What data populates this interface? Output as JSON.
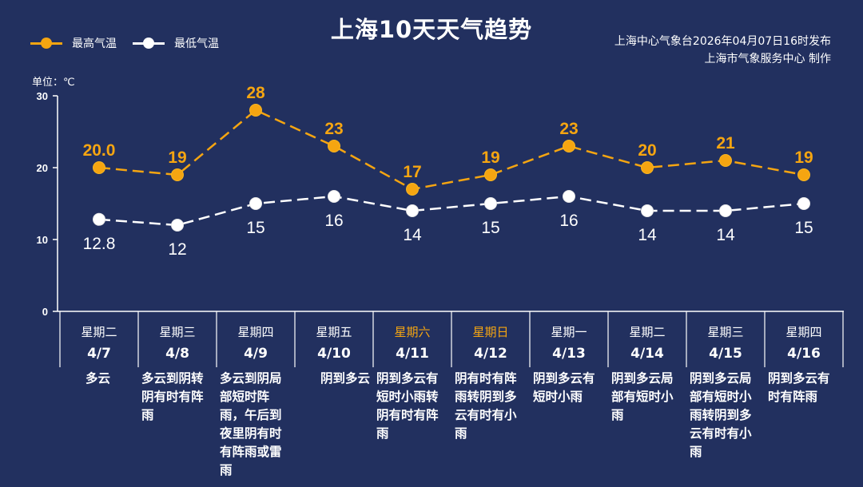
{
  "title": "上海10天天气趋势",
  "issuer": {
    "line1": "上海中心气象台2026年04月07日16时发布",
    "line2": "上海市气象服务中心  制作"
  },
  "legend": {
    "high": "最高气温",
    "low": "最低气温"
  },
  "unit_label": "单位：℃",
  "colors": {
    "background": "#22305f",
    "high": "#f5a511",
    "low": "#ffffff",
    "weekend": "#f5a511"
  },
  "chart_data": {
    "type": "line",
    "title": "上海10天天气趋势",
    "ylabel": "单位：℃",
    "ylim": [
      0,
      30
    ],
    "yticks": [
      "0",
      "10",
      "20",
      "30"
    ],
    "grid": false,
    "legend_position": "top-left",
    "categories": [
      "4/7",
      "4/8",
      "4/9",
      "4/10",
      "4/11",
      "4/12",
      "4/13",
      "4/14",
      "4/15",
      "4/16"
    ],
    "series": [
      {
        "name": "最高气温",
        "values": [
          20.0,
          19,
          28,
          23,
          17,
          19,
          23,
          20,
          21,
          19
        ],
        "labels": [
          "20.0",
          "19",
          "28",
          "23",
          "17",
          "19",
          "23",
          "20",
          "21",
          "19"
        ]
      },
      {
        "name": "最低气温",
        "values": [
          12.8,
          12,
          15,
          16,
          14,
          15,
          16,
          14,
          14,
          15
        ],
        "labels": [
          "12.8",
          "12",
          "15",
          "16",
          "14",
          "15",
          "16",
          "14",
          "14",
          "15"
        ]
      }
    ]
  },
  "days": [
    {
      "weekday": "星期二",
      "date": "4/7",
      "weather": "多云",
      "weekend": false
    },
    {
      "weekday": "星期三",
      "date": "4/8",
      "weather": "多云到阴转阴有时有阵雨",
      "weekend": false
    },
    {
      "weekday": "星期四",
      "date": "4/9",
      "weather": "多云到阴局部短时阵雨，午后到夜里阴有时有阵雨或雷雨",
      "weekend": false
    },
    {
      "weekday": "星期五",
      "date": "4/10",
      "weather": "阴到多云",
      "weekend": false
    },
    {
      "weekday": "星期六",
      "date": "4/11",
      "weather": "阴到多云有短时小雨转阴有时有阵雨",
      "weekend": true
    },
    {
      "weekday": "星期日",
      "date": "4/12",
      "weather": "阴有时有阵雨转阴到多云有时有小雨",
      "weekend": true
    },
    {
      "weekday": "星期一",
      "date": "4/13",
      "weather": "阴到多云有短时小雨",
      "weekend": false
    },
    {
      "weekday": "星期二",
      "date": "4/14",
      "weather": "阴到多云局部有短时小雨",
      "weekend": false
    },
    {
      "weekday": "星期三",
      "date": "4/15",
      "weather": "阴到多云局部有短时小雨转阴到多云有时有小雨",
      "weekend": false
    },
    {
      "weekday": "星期四",
      "date": "4/16",
      "weather": "阴到多云有时有阵雨",
      "weekend": false
    }
  ]
}
